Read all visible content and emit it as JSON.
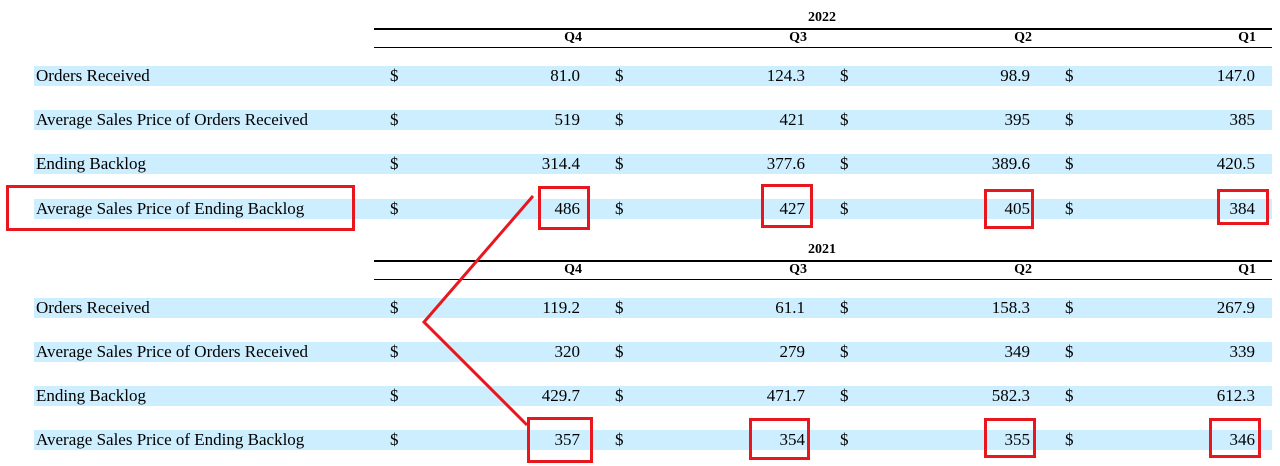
{
  "tables": [
    {
      "year": "2022",
      "quarters": [
        "Q4",
        "Q3",
        "Q2",
        "Q1"
      ],
      "rows": [
        {
          "label": "Orders Received",
          "values": [
            "81.0",
            "124.3",
            "98.9",
            "147.0"
          ]
        },
        {
          "label": "Average Sales Price of Orders Received",
          "values": [
            "519",
            "421",
            "395",
            "385"
          ]
        },
        {
          "label": "Ending Backlog",
          "values": [
            "314.4",
            "377.6",
            "389.6",
            "420.5"
          ]
        },
        {
          "label": "Average Sales Price of Ending Backlog",
          "values": [
            "486",
            "427",
            "405",
            "384"
          ]
        }
      ]
    },
    {
      "year": "2021",
      "quarters": [
        "Q4",
        "Q3",
        "Q2",
        "Q1"
      ],
      "rows": [
        {
          "label": "Orders Received",
          "values": [
            "119.2",
            "61.1",
            "158.3",
            "267.9"
          ]
        },
        {
          "label": "Average Sales Price of Orders Received",
          "values": [
            "320",
            "279",
            "349",
            "339"
          ]
        },
        {
          "label": "Ending Backlog",
          "values": [
            "429.7",
            "471.7",
            "582.3",
            "612.3"
          ]
        },
        {
          "label": "Average Sales Price of Ending Backlog",
          "values": [
            "357",
            "354",
            "355",
            "346"
          ]
        }
      ]
    }
  ],
  "currency_symbol": "$",
  "annotation_color": "#e8161d",
  "row_highlight_color": "#cceeff"
}
